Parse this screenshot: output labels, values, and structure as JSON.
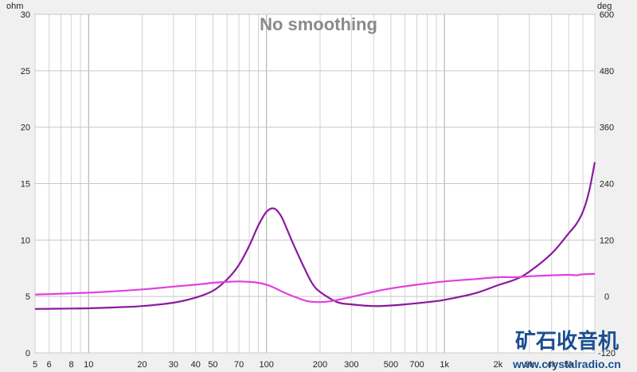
{
  "chart_data": {
    "type": "line",
    "title": "No smoothing",
    "x_axis": {
      "scale": "log",
      "range": [
        5,
        7000
      ],
      "tick_labels": [
        {
          "value": 5,
          "label": "5"
        },
        {
          "value": 6,
          "label": "6"
        },
        {
          "value": 8,
          "label": "8"
        },
        {
          "value": 10,
          "label": "10"
        },
        {
          "value": 20,
          "label": "20"
        },
        {
          "value": 30,
          "label": "30"
        },
        {
          "value": 40,
          "label": "40"
        },
        {
          "value": 50,
          "label": "50"
        },
        {
          "value": 70,
          "label": "70"
        },
        {
          "value": 100,
          "label": "100"
        },
        {
          "value": 200,
          "label": "200"
        },
        {
          "value": 300,
          "label": "300"
        },
        {
          "value": 500,
          "label": "500"
        },
        {
          "value": 700,
          "label": "700"
        },
        {
          "value": 1000,
          "label": "1k"
        },
        {
          "value": 2000,
          "label": "2k"
        },
        {
          "value": 3000,
          "label": "3k"
        },
        {
          "value": 4000,
          "label": "4k"
        },
        {
          "value": 5000,
          "label": "5k"
        }
      ]
    },
    "y_left": {
      "unit_label": "ohm",
      "range": [
        0,
        30
      ],
      "ticks": [
        0,
        5,
        10,
        15,
        20,
        25,
        30
      ]
    },
    "y_right": {
      "unit_label": "deg",
      "range": [
        -120,
        600
      ],
      "ticks": [
        -120,
        0,
        120,
        240,
        360,
        480,
        600
      ]
    },
    "grid": true,
    "series": [
      {
        "axis": "left",
        "color": "#8b1a9e",
        "x": [
          5,
          7,
          10,
          15,
          20,
          30,
          40,
          50,
          60,
          70,
          80,
          90,
          100,
          110,
          120,
          130,
          140,
          160,
          180,
          200,
          250,
          300,
          400,
          500,
          600,
          700,
          800,
          1000,
          1500,
          2000,
          2500,
          3000,
          4000,
          5000,
          5500,
          6000,
          6500,
          7000
        ],
        "values": [
          3.9,
          3.92,
          3.95,
          4.05,
          4.15,
          4.45,
          4.9,
          5.5,
          6.5,
          7.8,
          9.5,
          11.3,
          12.5,
          12.8,
          12.2,
          11.0,
          9.8,
          7.8,
          6.2,
          5.4,
          4.5,
          4.3,
          4.15,
          4.2,
          4.3,
          4.4,
          4.5,
          4.7,
          5.3,
          6.0,
          6.5,
          7.2,
          8.8,
          10.6,
          11.4,
          12.5,
          14.3,
          16.9
        ]
      },
      {
        "axis": "right",
        "color": "#e040e0",
        "x": [
          5,
          10,
          20,
          30,
          40,
          50,
          60,
          70,
          80,
          90,
          100,
          110,
          120,
          140,
          170,
          200,
          230,
          300,
          400,
          500,
          700,
          1000,
          1500,
          2000,
          2500,
          3000,
          4000,
          5000,
          5500,
          6000,
          7000
        ],
        "values": [
          4,
          8,
          15,
          21,
          25,
          29,
          31,
          32,
          31,
          29,
          25,
          19,
          12,
          1,
          -10,
          -12,
          -10,
          -1,
          10,
          17,
          25,
          32,
          37,
          41,
          41,
          43,
          45,
          46,
          45,
          47,
          48
        ]
      }
    ]
  },
  "watermark": {
    "chinese": "矿石收音机",
    "site": "www.crystalradio.cn"
  }
}
